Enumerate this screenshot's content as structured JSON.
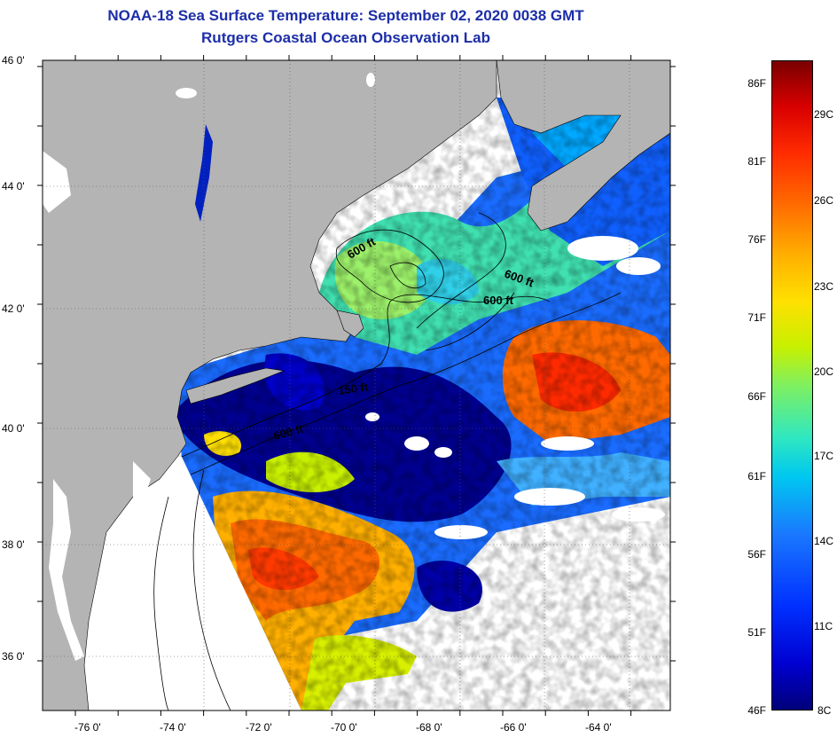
{
  "title": {
    "line1": "NOAA-18 Sea Surface Temperature:  September 02, 2020 0038 GMT",
    "line2": "Rutgers Coastal Ocean Observation Lab"
  },
  "axes": {
    "lat_labels": [
      "46 0'",
      "44 0'",
      "42 0'",
      "40 0'",
      "38 0'",
      "36 0'"
    ],
    "lon_labels": [
      "-76 0'",
      "-74 0'",
      "-72 0'",
      "-70 0'",
      "-68 0'",
      "-66 0'",
      "-64 0'"
    ]
  },
  "contours": {
    "labels": [
      "600 ft",
      "600 ft",
      "600 ft",
      "150 ft",
      "600 ft"
    ]
  },
  "colorbar": {
    "fahrenheit": [
      "86F",
      "81F",
      "76F",
      "71F",
      "66F",
      "61F",
      "56F",
      "51F",
      "46F"
    ],
    "celsius": [
      "29C",
      "26C",
      "23C",
      "20C",
      "17C",
      "14C",
      "11C",
      "8C"
    ]
  },
  "colors": {
    "land": "#b4b4b4",
    "no_data": "#ffffff",
    "cold": "#00008c",
    "warm": "#ff4a00",
    "title": "#1c2ea8"
  }
}
